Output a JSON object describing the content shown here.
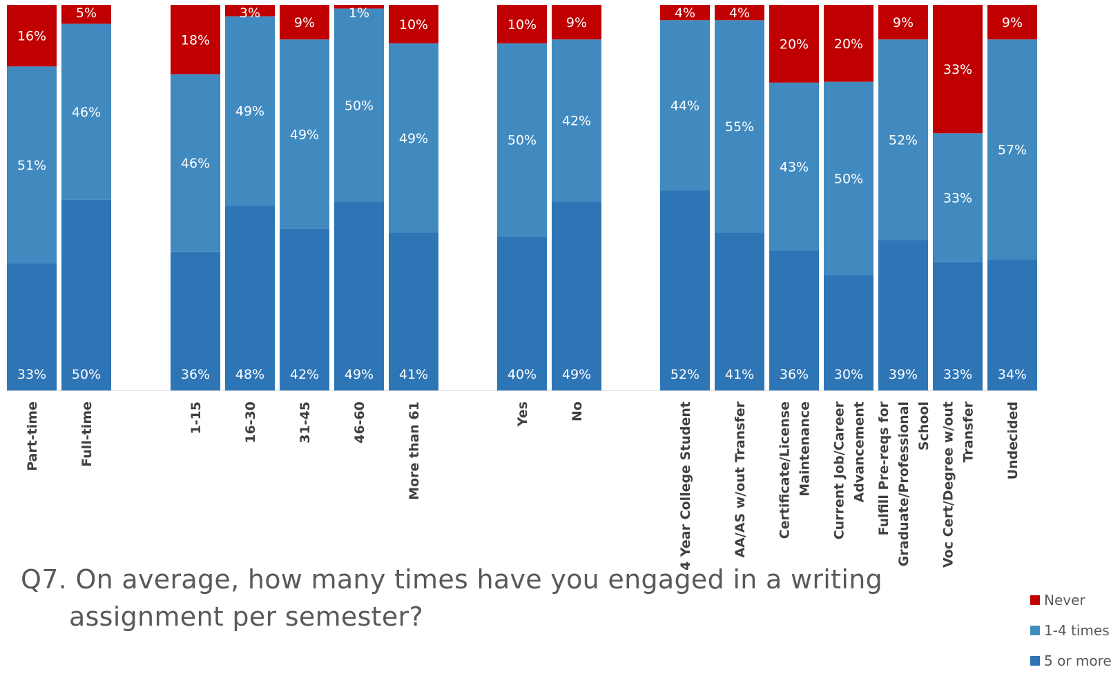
{
  "chart_data": {
    "type": "bar",
    "stacked": true,
    "percent_stacked": true,
    "title_lines": [
      "Q7. On average, how many times have you engaged in a writing",
      "assignment per semester?"
    ],
    "legend_position": "bottom-right",
    "ylim": [
      0,
      100
    ],
    "groups": [
      {
        "categories": [
          [
            "Part-time"
          ],
          [
            "Full-time"
          ]
        ]
      },
      {
        "categories": [
          [
            "1-15"
          ],
          [
            "16-30"
          ],
          [
            "31-45"
          ],
          [
            "46-60"
          ],
          [
            "More than 61"
          ]
        ]
      },
      {
        "categories": [
          [
            "Yes"
          ],
          [
            "No"
          ]
        ]
      },
      {
        "categories": [
          [
            "4 Year College Student"
          ],
          [
            "AA/AS w/out Transfer"
          ],
          [
            "Certificate/License",
            "Maintenance"
          ],
          [
            "Current Job/Career",
            "Advancement"
          ],
          [
            "Fulfill Pre-reqs for",
            "Graduate/Professional",
            "School"
          ],
          [
            "Voc Cert/Degree w/out",
            "Transfer"
          ],
          [
            "Undecided"
          ]
        ]
      }
    ],
    "series": [
      {
        "name": "5 or more",
        "color": "#2E75B6",
        "values": [
          33,
          50,
          36,
          48,
          42,
          49,
          41,
          40,
          49,
          52,
          41,
          36,
          30,
          39,
          33,
          34
        ]
      },
      {
        "name": "1-4 times",
        "color": "#418ABF",
        "values": [
          51,
          46,
          46,
          49,
          49,
          50,
          49,
          50,
          42,
          44,
          55,
          43,
          50,
          52,
          33,
          57
        ]
      },
      {
        "name": "Never",
        "color": "#C00000",
        "values": [
          16,
          5,
          18,
          3,
          9,
          1,
          10,
          10,
          9,
          4,
          4,
          20,
          20,
          9,
          33,
          9
        ]
      }
    ],
    "legend_order": [
      "Never",
      "1-4 times",
      "5 or more"
    ],
    "data_labels": [
      {
        "series": "5 or more",
        "labels": [
          "33%",
          "50%",
          "36%",
          "48%",
          "42%",
          "49%",
          "41%",
          "40%",
          "49%",
          "52%",
          "41%",
          "36%",
          "30%",
          "39%",
          "33%",
          "34%"
        ]
      },
      {
        "series": "1-4 times",
        "labels": [
          "51%",
          "46%",
          "46%",
          "49%",
          "49%",
          "50%",
          "49%",
          "50%",
          "42%",
          "44%",
          "55%",
          "43%",
          "50%",
          "52%",
          "33%",
          "57%"
        ]
      },
      {
        "series": "Never",
        "labels": [
          "16%",
          "5%",
          "18%",
          "3%",
          "9%",
          "1%",
          "10%",
          "10%",
          "9%",
          "4%",
          "4%",
          "20%",
          "20%",
          "9%",
          "33%",
          "9%"
        ]
      }
    ]
  }
}
